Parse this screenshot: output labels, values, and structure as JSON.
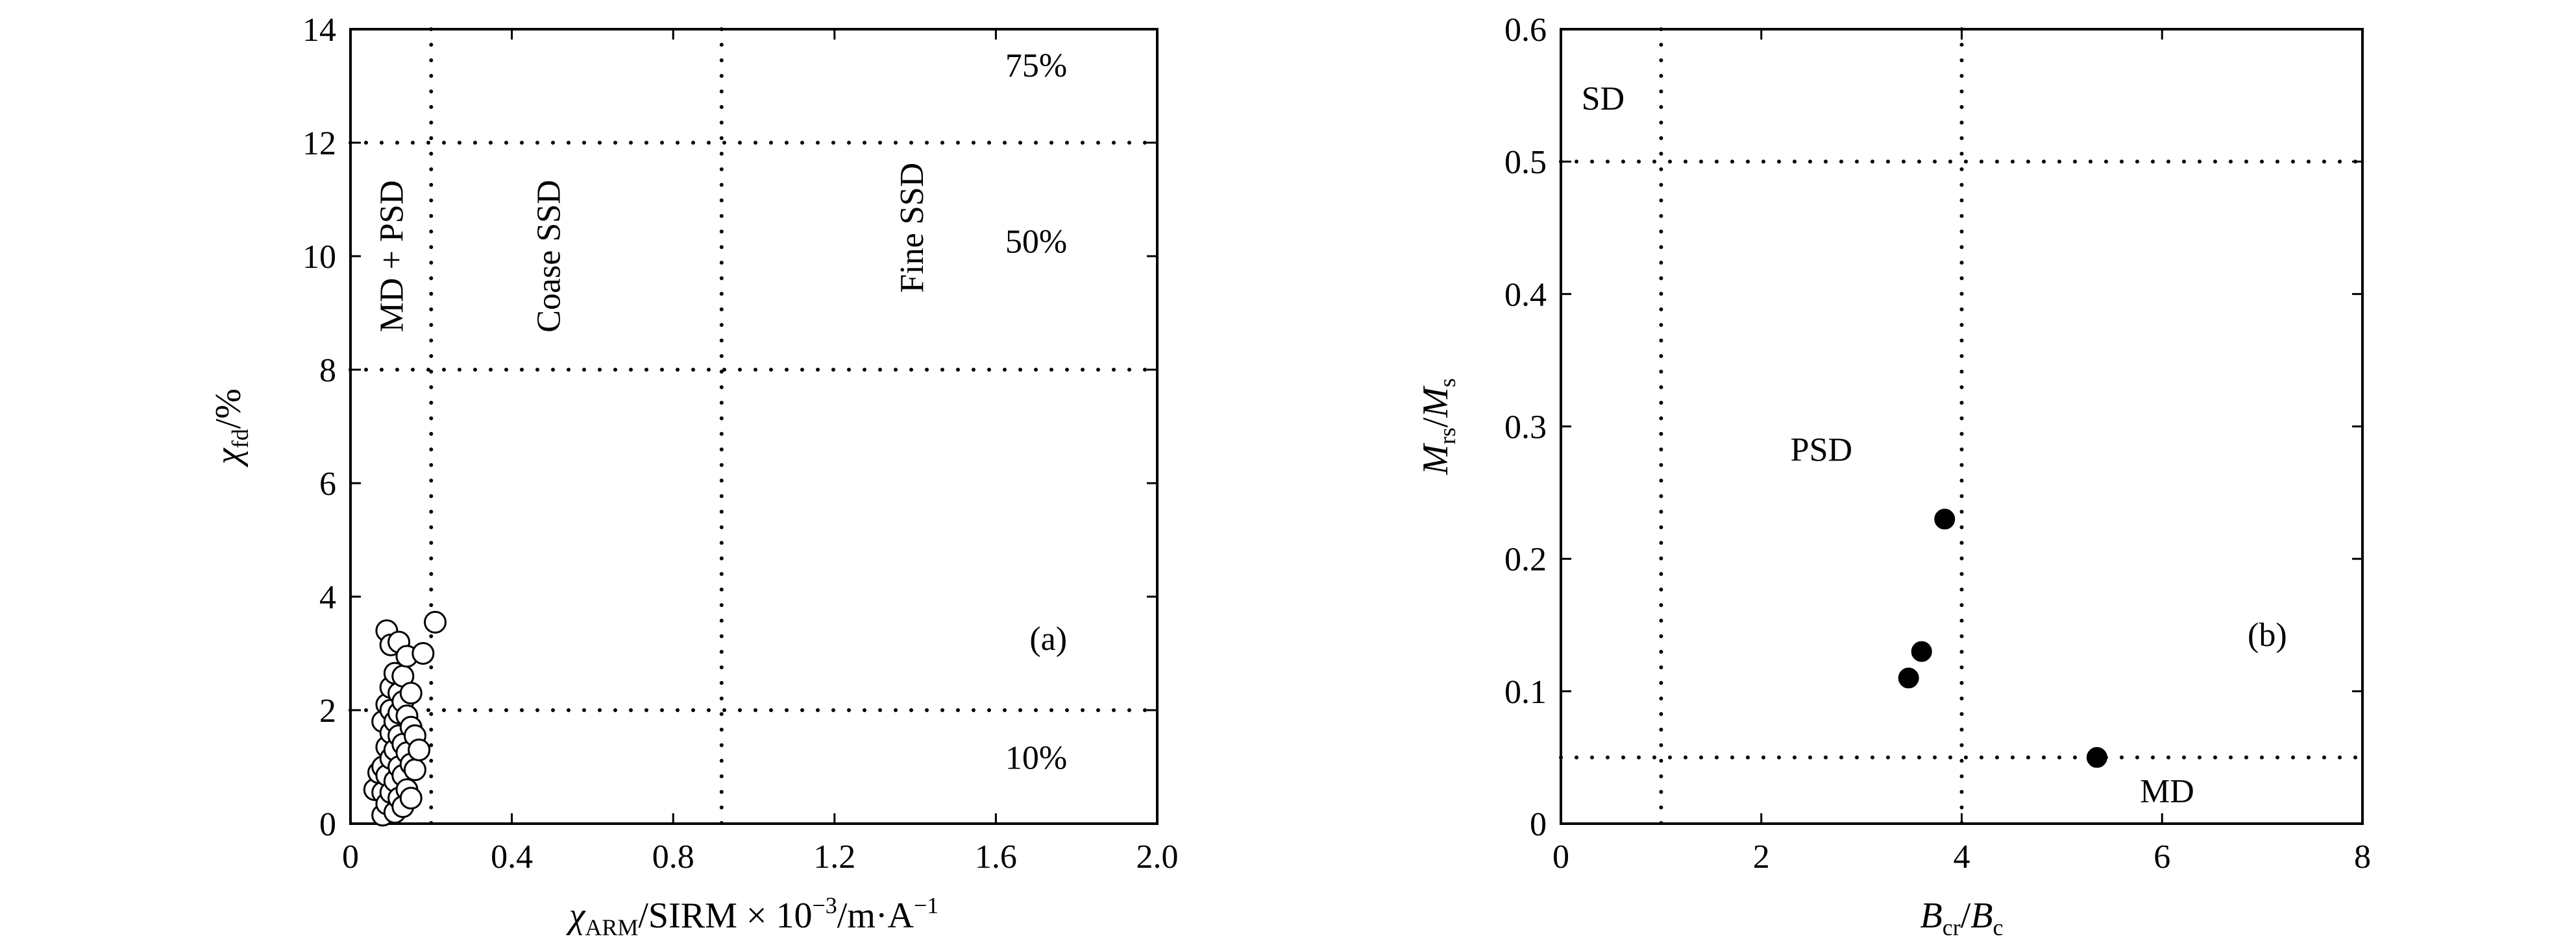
{
  "chart_data": [
    {
      "type": "scatter",
      "panel_label": "(a)",
      "xlabel": {
        "main": "χ",
        "sub": "ARM",
        "rest": "/SIRM × 10",
        "sup1": "−3",
        "rest2": "/m·A",
        "sup2": "−1"
      },
      "ylabel": {
        "main": "χ",
        "sub": "fd",
        "rest": "/%"
      },
      "xlim": [
        0,
        2.0
      ],
      "ylim": [
        0,
        14
      ],
      "x_ticks": [
        "0",
        "0.4",
        "0.8",
        "1.2",
        "1.6",
        "2.0"
      ],
      "y_ticks": [
        "0",
        "2",
        "4",
        "6",
        "8",
        "10",
        "12",
        "14"
      ],
      "grid": false,
      "reference_lines": {
        "vertical_x": [
          0.2,
          0.92
        ],
        "horizontal_y": [
          2,
          8,
          12
        ]
      },
      "region_labels": [
        {
          "text": "MD + PSD",
          "x": 0.11,
          "y": 10.0,
          "rotate": true
        },
        {
          "text": "Coase SSD",
          "x": 0.5,
          "y": 10.0,
          "rotate": true
        },
        {
          "text": "Fine SSD",
          "x": 1.4,
          "y": 10.5,
          "rotate": true
        },
        {
          "text": "75%",
          "x": 1.7,
          "y": 13.3
        },
        {
          "text": "50%",
          "x": 1.7,
          "y": 10.2
        },
        {
          "text": "10%",
          "x": 1.7,
          "y": 1.1
        }
      ],
      "marker": "open-circle",
      "points": [
        [
          0.06,
          0.6
        ],
        [
          0.07,
          0.9
        ],
        [
          0.08,
          1.8
        ],
        [
          0.08,
          1.0
        ],
        [
          0.08,
          0.55
        ],
        [
          0.08,
          0.15
        ],
        [
          0.09,
          2.1
        ],
        [
          0.09,
          1.35
        ],
        [
          0.09,
          0.85
        ],
        [
          0.09,
          0.35
        ],
        [
          0.09,
          3.4
        ],
        [
          0.1,
          3.15
        ],
        [
          0.1,
          2.4
        ],
        [
          0.1,
          2.0
        ],
        [
          0.1,
          1.6
        ],
        [
          0.1,
          1.15
        ],
        [
          0.1,
          0.55
        ],
        [
          0.11,
          2.65
        ],
        [
          0.11,
          1.8
        ],
        [
          0.11,
          1.3
        ],
        [
          0.11,
          0.75
        ],
        [
          0.11,
          0.2
        ],
        [
          0.12,
          3.2
        ],
        [
          0.12,
          2.3
        ],
        [
          0.12,
          1.95
        ],
        [
          0.12,
          1.55
        ],
        [
          0.12,
          1.0
        ],
        [
          0.12,
          0.45
        ],
        [
          0.13,
          2.6
        ],
        [
          0.13,
          2.15
        ],
        [
          0.13,
          1.4
        ],
        [
          0.13,
          0.85
        ],
        [
          0.13,
          0.3
        ],
        [
          0.14,
          2.95
        ],
        [
          0.14,
          1.9
        ],
        [
          0.14,
          1.25
        ],
        [
          0.14,
          0.6
        ],
        [
          0.15,
          2.3
        ],
        [
          0.15,
          1.7
        ],
        [
          0.15,
          1.05
        ],
        [
          0.15,
          0.45
        ],
        [
          0.16,
          1.55
        ],
        [
          0.16,
          0.95
        ],
        [
          0.17,
          1.3
        ],
        [
          0.18,
          3.0
        ],
        [
          0.21,
          3.55
        ]
      ]
    },
    {
      "type": "scatter",
      "panel_label": "(b)",
      "xlabel": {
        "main": "B",
        "sub": "cr",
        "rest": "/",
        "main2": "B",
        "sub2": "c"
      },
      "ylabel": {
        "main": "M",
        "sub": "rs",
        "rest": "/",
        "main2": "M",
        "sub2": "s"
      },
      "xlim": [
        0,
        8
      ],
      "ylim": [
        0,
        0.6
      ],
      "x_ticks": [
        "0",
        "2",
        "4",
        "6",
        "8"
      ],
      "y_ticks": [
        "0",
        "0.1",
        "0.2",
        "0.3",
        "0.4",
        "0.5",
        "0.6"
      ],
      "grid": false,
      "reference_lines": {
        "vertical_x": [
          1,
          4
        ],
        "horizontal_y": [
          0.05,
          0.5
        ]
      },
      "region_labels": [
        {
          "text": "SD",
          "x": 0.42,
          "y": 0.545
        },
        {
          "text": "PSD",
          "x": 2.6,
          "y": 0.28
        },
        {
          "text": "MD",
          "x": 6.05,
          "y": 0.022
        }
      ],
      "marker": "filled-circle",
      "points": [
        [
          3.83,
          0.23
        ],
        [
          3.6,
          0.13
        ],
        [
          3.47,
          0.11
        ],
        [
          5.35,
          0.05
        ]
      ]
    }
  ]
}
